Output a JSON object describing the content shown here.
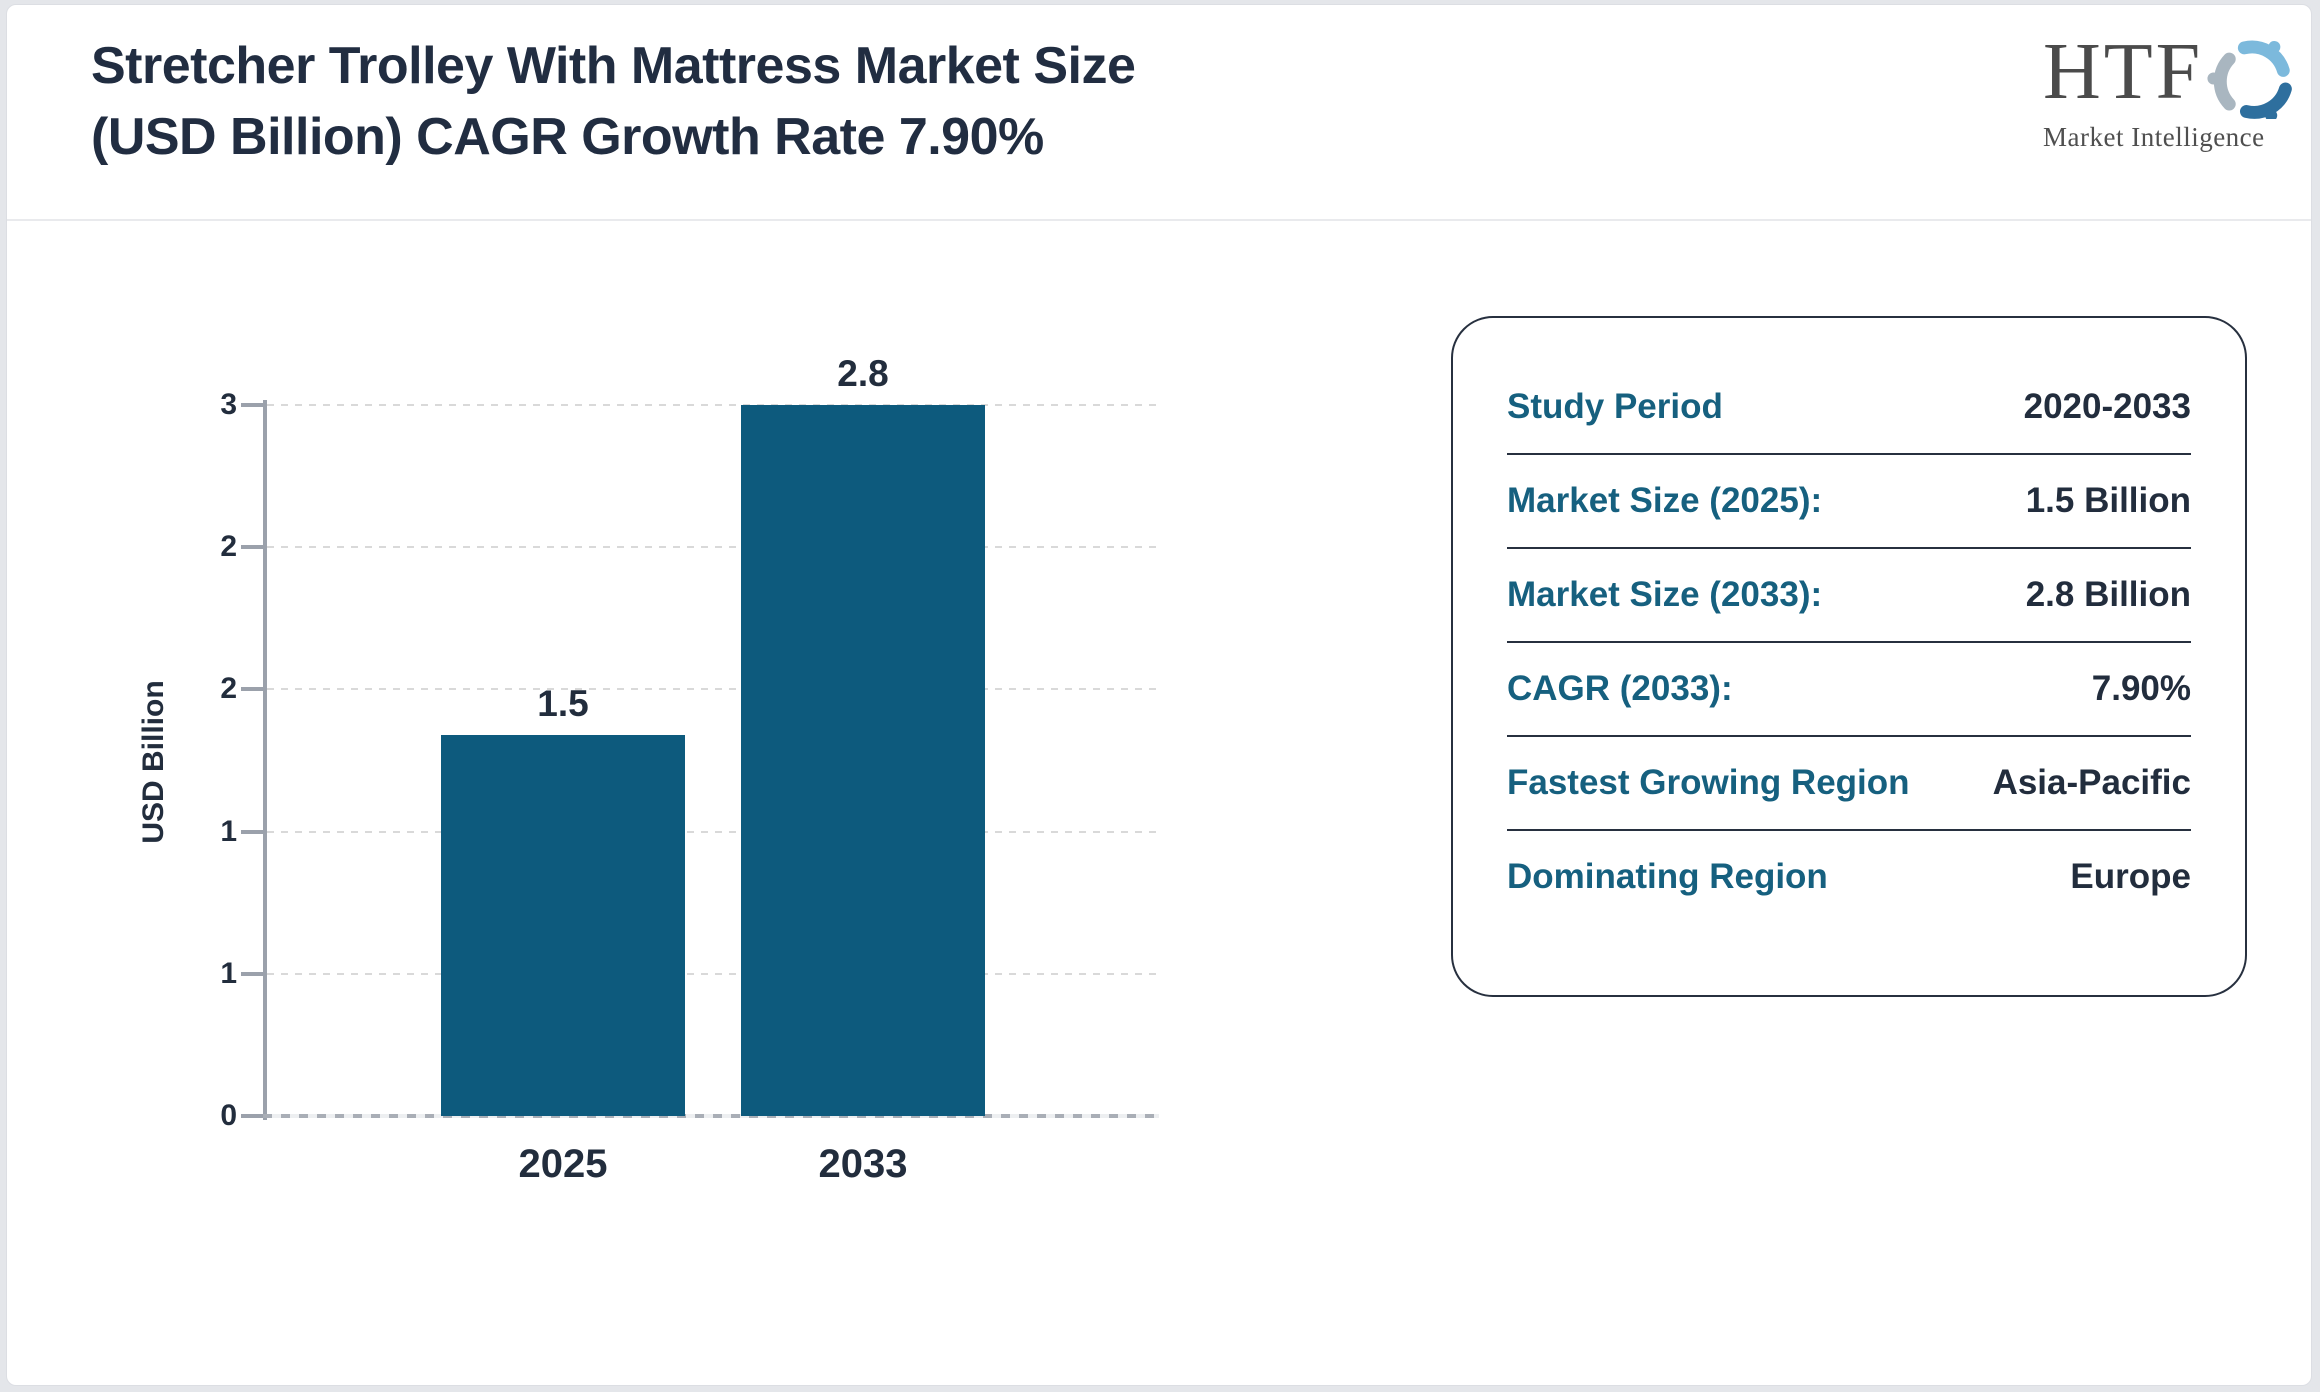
{
  "header": {
    "title_line1": "Stretcher Trolley With Mattress Market Size",
    "title_line2": "(USD Billion) CAGR Growth Rate 7.90%"
  },
  "logo": {
    "text": "HTF",
    "subtext": "Market Intelligence",
    "swirl_colors": [
      "#7cb9dc",
      "#2e6f9e",
      "#a9b6c0"
    ]
  },
  "chart_data": {
    "type": "bar",
    "title": "Stretcher Trolley With Mattress Market Size (USD Billion) CAGR Growth Rate 7.90%",
    "categories": [
      "2025",
      "2033"
    ],
    "values": [
      1.5,
      2.8
    ],
    "bar_value_labels": [
      "1.5",
      "2.8"
    ],
    "xlabel": "",
    "ylabel": "USD Billion",
    "ylim": [
      0,
      2.8
    ],
    "ytick_labels_bottom_to_top": [
      "0",
      "1",
      "1",
      "2",
      "2",
      "3"
    ],
    "grid": true,
    "legend": false,
    "bar_color": "#0d5a7d"
  },
  "panel": {
    "rows": [
      {
        "label": "Study Period",
        "value": "2020-2033"
      },
      {
        "label": "Market Size (2025):",
        "value": "1.5 Billion"
      },
      {
        "label": "Market Size (2033):",
        "value": "2.8 Billion"
      },
      {
        "label": "CAGR (2033):",
        "value": "7.90%"
      },
      {
        "label": "Fastest Growing Region",
        "value": "Asia-Pacific"
      },
      {
        "label": "Dominating Region",
        "value": "Europe"
      }
    ]
  },
  "colors": {
    "bar": "#0d5a7d",
    "panel_label": "#16607f",
    "text_dark": "#222d3d",
    "axis": "#9ba1ab",
    "grid": "#d9d9d9",
    "page_bg": "#e4e6ea"
  }
}
